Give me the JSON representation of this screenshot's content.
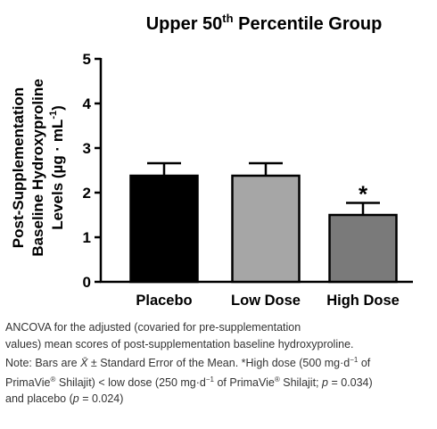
{
  "chart_data": {
    "type": "bar",
    "title_main": "Upper 50",
    "title_sup": "th",
    "title_rest": " Percentile Group",
    "ylabel_line1": "Post-Supplementation",
    "ylabel_line2": "Baseline Hydroxyproline",
    "ylabel_line3_main": "Levels (µg · mL",
    "ylabel_line3_sup": "-1",
    "ylabel_line3_end": ")",
    "xlabel": "",
    "ylim": [
      0,
      5
    ],
    "yticks": [
      "0",
      "1",
      "2",
      "3",
      "4",
      "5"
    ],
    "categories": [
      "Placebo",
      "Low Dose",
      "High Dose"
    ],
    "values": [
      2.38,
      2.38,
      1.5
    ],
    "errors": [
      0.28,
      0.28,
      0.27
    ],
    "colors": [
      "#000000",
      "#a6a6a6",
      "#7a7a7a"
    ],
    "annotations": [
      "",
      "",
      "*"
    ],
    "grid": false,
    "legend": "none"
  },
  "caption": {
    "line1": "ANCOVA for the adjusted (covaried for pre-supplementation",
    "line2": "values) mean scores of post-supplementation baseline hydroxyproline.",
    "line3a": "Note: Bars are ",
    "line3_xbar": "X̄",
    "line3b": " ± Standard Error of the Mean. *High dose (500 mg·d",
    "line3_sup1": "−1",
    "line3c": " of",
    "line4a": "PrimaVie",
    "line4_reg1": "®",
    "line4b": " Shilajit) < low dose (250 mg·d",
    "line4_sup2": "−1",
    "line4c": " of PrimaVie",
    "line4_reg2": "®",
    "line4d": " Shilajit; ",
    "line4_p1": "p",
    "line4e": " = 0.034)",
    "line5a": "and placebo (",
    "line5_p2": "p",
    "line5b": " = 0.024)"
  }
}
